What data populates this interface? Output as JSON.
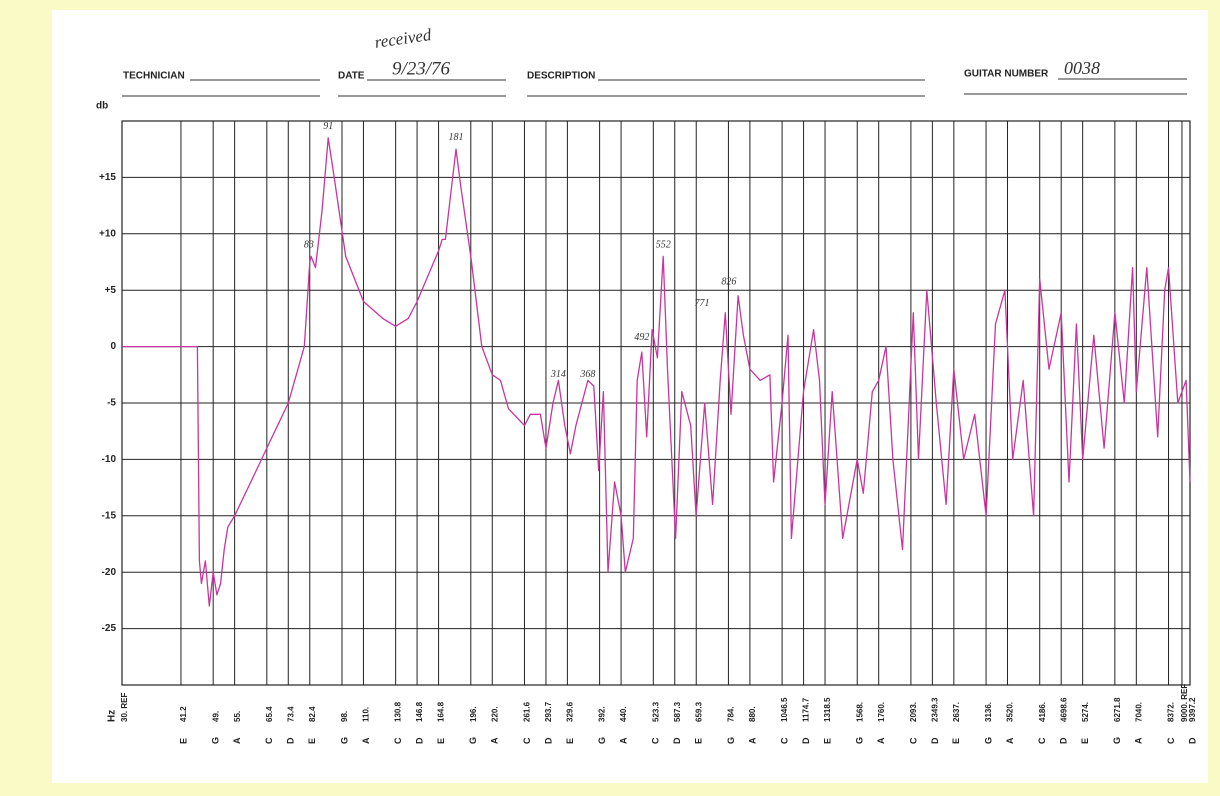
{
  "header": {
    "technician": "TECHNICIAN",
    "date": "DATE",
    "date_note": "received",
    "date_value": "9/23/76",
    "description": "DESCRIPTION",
    "guitar_number": "GUITAR NUMBER",
    "guitar_number_value": "0038"
  },
  "chart_data": {
    "type": "line",
    "y_label": "db",
    "x_label": "Hz",
    "xscale": "log",
    "grid": true,
    "xlim": [
      30,
      9397.2
    ],
    "ylim": [
      -30,
      20
    ],
    "yticks": [
      {
        "value": 15,
        "label": "+15"
      },
      {
        "value": 10,
        "label": "+10"
      },
      {
        "value": 5,
        "label": "+5"
      },
      0,
      -5,
      -10,
      -15,
      -20,
      -25
    ],
    "xticks": [
      {
        "value": 30,
        "label": "30. REF"
      },
      41.2,
      {
        "value": 49,
        "label": "49."
      },
      {
        "value": 55,
        "label": "55."
      },
      65.4,
      73.4,
      82.4,
      {
        "value": 98,
        "label": "98."
      },
      {
        "value": 110,
        "label": "110."
      },
      130.8,
      146.8,
      164.8,
      {
        "value": 196,
        "label": "196."
      },
      {
        "value": 220,
        "label": "220."
      },
      261.6,
      293.7,
      329.6,
      {
        "value": 392,
        "label": "392."
      },
      {
        "value": 440,
        "label": "440."
      },
      523.3,
      587.3,
      659.3,
      {
        "value": 784,
        "label": "784."
      },
      {
        "value": 880,
        "label": "880."
      },
      1046.5,
      1174.7,
      1318.5,
      {
        "value": 1568,
        "label": "1568."
      },
      {
        "value": 1760,
        "label": "1760."
      },
      {
        "value": 2093,
        "label": "2093."
      },
      2349.3,
      {
        "value": 2637,
        "label": "2637."
      },
      {
        "value": 3136,
        "label": "3136."
      },
      {
        "value": 3520,
        "label": "3520."
      },
      {
        "value": 4186,
        "label": "4186."
      },
      4698.6,
      {
        "value": 5274,
        "label": "5274."
      },
      6271.8,
      {
        "value": 7040,
        "label": "7040."
      },
      {
        "value": 8372,
        "label": "8372."
      },
      {
        "value": 9000,
        "label": "9000. REF"
      },
      9397.2
    ],
    "notes": [
      null,
      "E",
      "G",
      "A",
      "C",
      "D",
      "E",
      "G",
      "A",
      "C",
      "D",
      "E",
      "G",
      "A",
      "C",
      "D",
      "E",
      "G",
      "A",
      "C",
      "D",
      "E",
      "G",
      "A",
      "C",
      "D",
      "E",
      "G",
      "A",
      "C",
      "D",
      "E",
      "G",
      "A",
      "C",
      "D",
      "E",
      "G",
      "A",
      "C",
      null,
      "D"
    ],
    "series": [
      {
        "color": "#c8359e",
        "x": [
          30,
          40,
          45,
          45.5,
          46,
          47,
          48,
          49,
          50,
          51,
          52,
          53,
          55,
          60,
          65.4,
          73.4,
          80,
          82.4,
          83,
          85,
          88,
          91,
          94,
          100,
          110,
          122,
          130.8,
          140,
          146.8,
          164.8,
          168,
          171,
          181,
          186,
          196,
          208,
          220,
          230,
          240,
          261.6,
          270,
          285,
          293.7,
          305,
          314,
          325,
          335,
          345,
          368,
          380,
          390,
          400,
          410,
          425,
          440,
          450,
          470,
          480,
          492,
          505,
          520,
          535,
          552,
          565,
          590,
          610,
          640,
          659,
          690,
          720,
          750,
          771,
          795,
          826,
          850,
          880,
          930,
          980,
          1000,
          1046,
          1080,
          1100,
          1174,
          1240,
          1280,
          1318,
          1370,
          1450,
          1568,
          1620,
          1700,
          1760,
          1830,
          1900,
          2000,
          2120,
          2180,
          2280,
          2400,
          2530,
          2637,
          2780,
          2950,
          3136,
          3300,
          3470,
          3620,
          3830,
          4050,
          4186,
          4400,
          4698,
          4900,
          5100,
          5274,
          5600,
          5920,
          6272,
          6600,
          6900,
          7040,
          7450,
          7900,
          8200,
          8372,
          8800,
          9200,
          9397
        ],
        "values": [
          0,
          0,
          0,
          -19,
          -21,
          -19,
          -23,
          -20,
          -22,
          -21,
          -18,
          -16,
          -15,
          -12,
          -9,
          -5,
          0,
          7.5,
          8,
          7,
          12,
          18.5,
          15,
          8,
          4,
          2.5,
          1.8,
          2.5,
          4,
          8.5,
          9.5,
          9.5,
          17.5,
          14,
          8,
          0,
          -2.5,
          -3,
          -5.5,
          -7,
          -6,
          -6,
          -9,
          -5,
          -3,
          -7,
          -9.5,
          -7,
          -3,
          -3.5,
          -11,
          -4,
          -20,
          -12,
          -15,
          -20,
          -17,
          -3,
          -0.5,
          -8,
          1.5,
          -1,
          8,
          -2,
          -17,
          -4,
          -7,
          -15,
          -5,
          -14,
          -3,
          3,
          -6,
          4.5,
          1,
          -2,
          -3,
          -2.5,
          -12,
          -5,
          1,
          -17,
          -4,
          1.5,
          -3,
          -14,
          -4,
          -17,
          -10,
          -13,
          -4,
          -3,
          0,
          -10,
          -18,
          3,
          -10,
          5,
          -5,
          -14,
          -2,
          -10,
          -6,
          -15,
          2,
          5,
          -10,
          -3,
          -15,
          6,
          -2,
          3,
          -12,
          2,
          -10,
          1,
          -9,
          3,
          -5,
          7,
          -4,
          7,
          -8,
          5,
          7,
          -5,
          -3,
          -12
        ]
      }
    ],
    "annotations": [
      {
        "text": "83",
        "x": 82,
        "y": 9
      },
      {
        "text": "91",
        "x": 91,
        "y": 19.5
      },
      {
        "text": "181",
        "x": 181,
        "y": 18.5
      },
      {
        "text": "314",
        "x": 314,
        "y": -2.5
      },
      {
        "text": "368",
        "x": 368,
        "y": -2.5
      },
      {
        "text": "492",
        "x": 492,
        "y": 0.8
      },
      {
        "text": "552",
        "x": 552,
        "y": 9
      },
      {
        "text": "771",
        "x": 680,
        "y": 3.8
      },
      {
        "text": "826",
        "x": 786,
        "y": 5.7
      }
    ]
  }
}
